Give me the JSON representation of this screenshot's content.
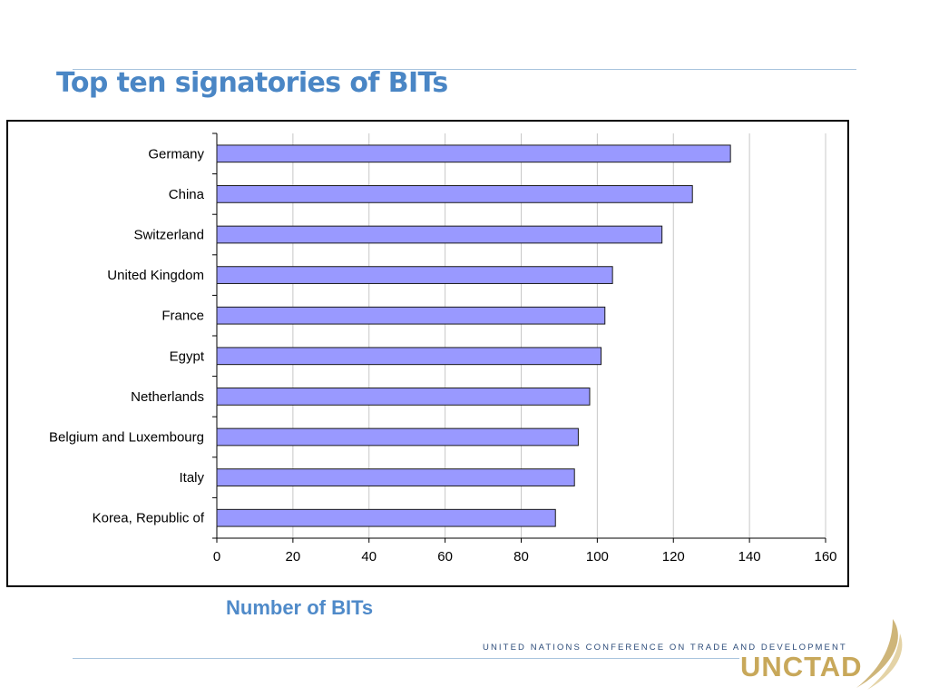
{
  "slide": {
    "title": "Top ten signatories of BITs",
    "x_caption": "Number of BITs"
  },
  "footer": {
    "organization": "UNITED NATIONS CONFERENCE ON TRADE AND DEVELOPMENT",
    "logo_text": "UNCTAD"
  },
  "colors": {
    "bar_fill": "#9999ff",
    "bar_stroke": "#1a1a1a",
    "title": "#4a86c5",
    "grid": "#c8c8c8",
    "logo_gold": "#c8a85a"
  },
  "chart_data": {
    "type": "bar",
    "orientation": "horizontal",
    "categories": [
      "Germany",
      "China",
      "Switzerland",
      "United Kingdom",
      "France",
      "Egypt",
      "Netherlands",
      "Belgium and Luxembourg",
      "Italy",
      "Korea, Republic of"
    ],
    "values": [
      135,
      125,
      117,
      104,
      102,
      101,
      98,
      95,
      94,
      89
    ],
    "title": "Top ten signatories of BITs",
    "xlabel": "Number of BITs",
    "ylabel": "",
    "xlim": [
      0,
      160
    ],
    "xticks": [
      0,
      20,
      40,
      60,
      80,
      100,
      120,
      140,
      160
    ],
    "grid": true,
    "legend": "none"
  }
}
